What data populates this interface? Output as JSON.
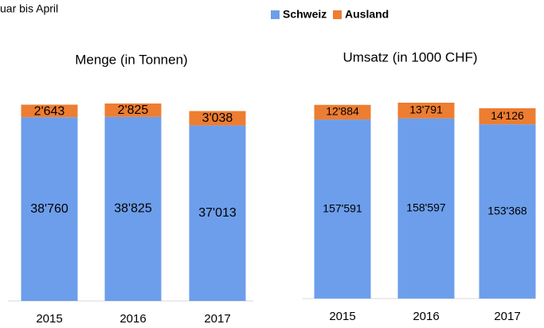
{
  "caption": "uar bis April",
  "chart_data": [
    {
      "type": "bar",
      "stacked": true,
      "title": "Menge (in Tonnen)",
      "categories": [
        "2015",
        "2016",
        "2017"
      ],
      "series": [
        {
          "name": "Schweiz",
          "color": "#6d9eeb",
          "values": [
            38760,
            38825,
            37013
          ],
          "value_labels": [
            "38'760",
            "38'825",
            "37'013"
          ]
        },
        {
          "name": "Ausland",
          "color": "#ed7d31",
          "values": [
            2643,
            2825,
            3038
          ],
          "value_labels": [
            "2'643",
            "2'825",
            "3'038"
          ]
        }
      ]
    },
    {
      "type": "bar",
      "stacked": true,
      "title": "Umsatz (in 1000 CHF)",
      "categories": [
        "2015",
        "2016",
        "2017"
      ],
      "series": [
        {
          "name": "Schweiz",
          "color": "#6d9eeb",
          "values": [
            157591,
            158597,
            153368
          ],
          "value_labels": [
            "157'591",
            "158'597",
            "153'368"
          ]
        },
        {
          "name": "Ausland",
          "color": "#ed7d31",
          "values": [
            12884,
            13791,
            14126
          ],
          "value_labels": [
            "12'884",
            "13'791",
            "14'126"
          ]
        }
      ]
    }
  ]
}
